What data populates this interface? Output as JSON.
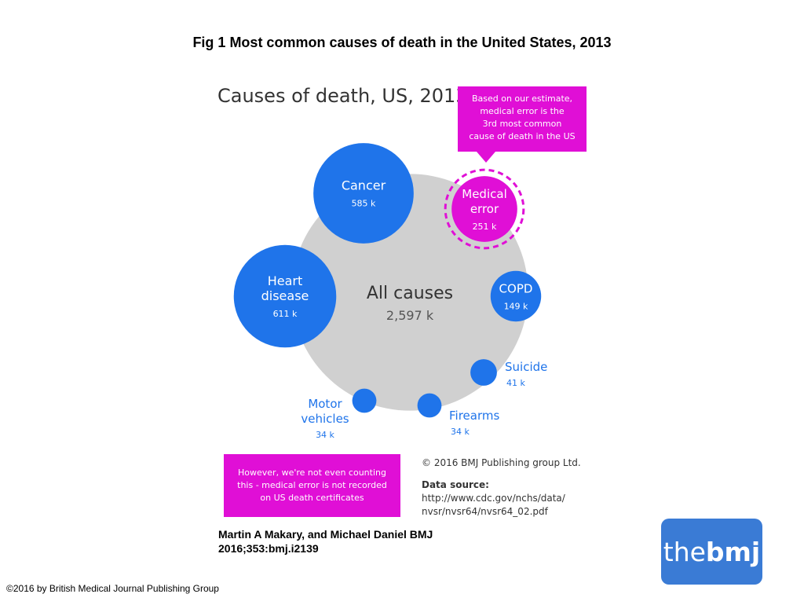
{
  "figure": {
    "title": "Fig 1 Most common causes of death in the United States, 2013"
  },
  "chart_data": {
    "type": "bubble",
    "title": "Causes of death, US, 2013",
    "total": {
      "label": "All causes",
      "value_label": "2,597 k",
      "value": 2597
    },
    "bubbles": [
      {
        "name": "Heart disease",
        "label_lines": [
          "Heart",
          "disease"
        ],
        "value": 611,
        "value_label": "611 k",
        "highlight": false
      },
      {
        "name": "Cancer",
        "label_lines": [
          "Cancer"
        ],
        "value": 585,
        "value_label": "585 k",
        "highlight": false
      },
      {
        "name": "Medical error",
        "label_lines": [
          "Medical",
          "error"
        ],
        "value": 251,
        "value_label": "251 k",
        "highlight": true
      },
      {
        "name": "COPD",
        "label_lines": [
          "COPD"
        ],
        "value": 149,
        "value_label": "149 k",
        "highlight": false
      },
      {
        "name": "Suicide",
        "label_lines": [
          "Suicide"
        ],
        "value": 41,
        "value_label": "41 k",
        "highlight": false
      },
      {
        "name": "Firearms",
        "label_lines": [
          "Firearms"
        ],
        "value": 34,
        "value_label": "34 k",
        "highlight": false
      },
      {
        "name": "Motor vehicles",
        "label_lines": [
          "Motor",
          "vehicles"
        ],
        "value": 34,
        "value_label": "34 k",
        "highlight": false
      }
    ],
    "colors": {
      "bubble": "#1f74ea",
      "total": "#d0d0d0",
      "highlight": "#e00fd6"
    }
  },
  "callouts": {
    "top": [
      "Based on our estimate,",
      "medical error is the",
      "3rd most common",
      "cause of death in the US"
    ],
    "bottom": [
      "However, we're not even counting",
      "this - medical error is not recorded",
      "on US death certificates"
    ]
  },
  "source": {
    "copyright": "© 2016 BMJ Publishing group Ltd.",
    "label": "Data source:",
    "url_lines": [
      "http://www.cdc.gov/nchs/data/",
      "nvsr/nvsr64/nvsr64_02.pdf"
    ]
  },
  "citation": [
    "Martin A Makary, and Michael Daniel BMJ",
    "2016;353:bmj.i2139"
  ],
  "logo": {
    "prefix": "the",
    "bold": "bmj"
  },
  "footer": {
    "copyright": "©2016 by British Medical Journal Publishing Group"
  }
}
